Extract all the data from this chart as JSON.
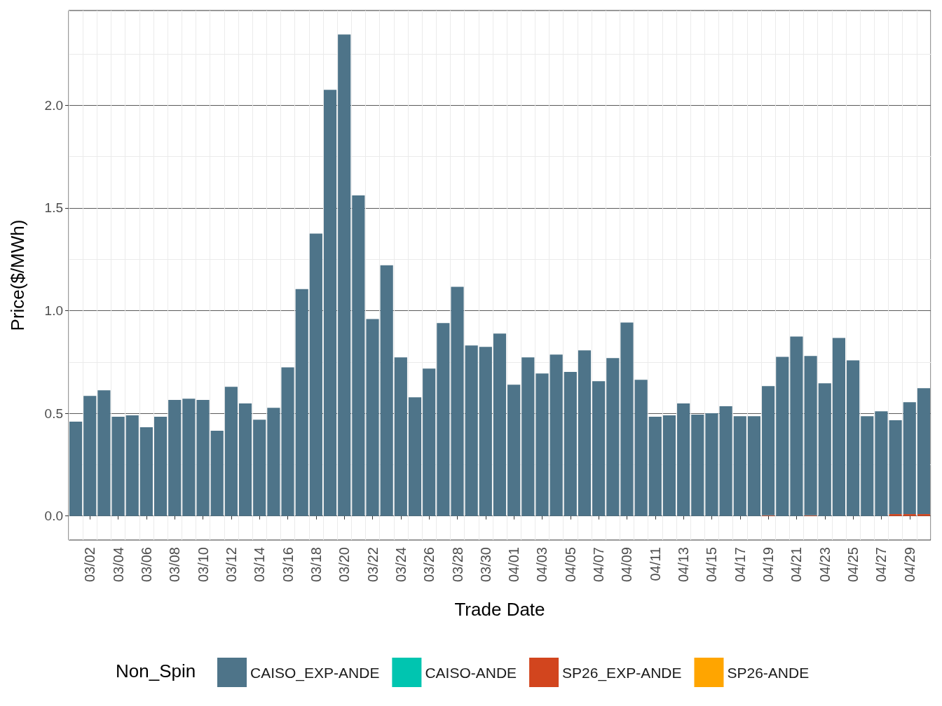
{
  "chart_data": {
    "type": "bar",
    "stacked": true,
    "xlabel": "Trade Date",
    "ylabel": "Price($/MWh)",
    "legend_title": "Non_Spin",
    "legend": "bottom",
    "grid": true,
    "categories": [
      null,
      "03/02",
      null,
      "03/04",
      null,
      "03/06",
      null,
      "03/08",
      null,
      "03/10",
      null,
      "03/12",
      null,
      "03/14",
      null,
      "03/16",
      null,
      "03/18",
      null,
      "03/20",
      null,
      "03/22",
      null,
      "03/24",
      null,
      "03/26",
      null,
      "03/28",
      null,
      "03/30",
      null,
      "04/01",
      null,
      "04/03",
      null,
      "04/05",
      null,
      "04/07",
      null,
      "04/09",
      null,
      "04/11",
      null,
      "04/13",
      null,
      "04/15",
      null,
      "04/17",
      null,
      "04/19",
      null,
      "04/21",
      null,
      "04/23",
      null,
      "04/25",
      null,
      "04/27",
      null,
      "04/29",
      null
    ],
    "ylim": [
      -0.117,
      2.461
    ],
    "yticks": [
      {
        "value": 0,
        "label": "0.0"
      },
      0.5,
      {
        "value": 1,
        "label": "1.0"
      },
      1.5,
      {
        "value": 2,
        "label": "2.0"
      }
    ],
    "series": [
      {
        "name": "SP26-ANDE",
        "color": "#ffa500",
        "values": [
          null,
          null,
          null,
          null,
          null,
          null,
          null,
          null,
          null,
          null,
          null,
          null,
          null,
          null,
          null,
          null,
          null,
          null,
          null,
          null,
          null,
          null,
          null,
          null,
          null,
          null,
          null,
          null,
          null,
          null,
          null,
          null,
          null,
          null,
          null,
          null,
          null,
          null,
          null,
          null,
          null,
          null,
          null,
          null,
          null,
          null,
          null,
          null,
          null,
          null,
          null,
          null,
          null,
          null,
          null,
          null,
          null,
          null,
          null,
          null,
          null
        ]
      },
      {
        "name": "SP26_EXP-ANDE",
        "color": "#d2451e",
        "values": [
          null,
          null,
          null,
          null,
          null,
          null,
          null,
          null,
          null,
          null,
          null,
          null,
          null,
          null,
          null,
          null,
          null,
          null,
          null,
          null,
          null,
          null,
          null,
          null,
          null,
          null,
          null,
          null,
          null,
          null,
          null,
          null,
          null,
          null,
          null,
          null,
          null,
          null,
          null,
          null,
          null,
          null,
          null,
          null,
          null,
          null,
          null,
          null,
          null,
          0.003,
          null,
          null,
          0.003,
          null,
          null,
          null,
          null,
          null,
          0.009,
          0.009,
          0.009
        ]
      },
      {
        "name": "CAISO-ANDE",
        "color": "#00c5b0",
        "values": [
          null,
          null,
          null,
          null,
          null,
          null,
          null,
          null,
          null,
          null,
          null,
          null,
          null,
          null,
          null,
          null,
          null,
          null,
          null,
          null,
          null,
          null,
          null,
          null,
          null,
          null,
          null,
          null,
          null,
          null,
          null,
          null,
          null,
          null,
          null,
          null,
          null,
          null,
          null,
          null,
          null,
          null,
          null,
          null,
          null,
          null,
          null,
          null,
          null,
          null,
          null,
          null,
          null,
          null,
          null,
          null,
          null,
          null,
          null,
          null,
          null
        ]
      },
      {
        "name": "CAISO_EXP-ANDE",
        "color": "#4e7489",
        "values": [
          0.459,
          0.585,
          0.612,
          0.483,
          0.49,
          0.432,
          0.483,
          0.565,
          0.571,
          0.565,
          0.415,
          0.629,
          0.548,
          0.469,
          0.527,
          0.724,
          1.105,
          1.375,
          2.075,
          2.344,
          1.561,
          0.959,
          1.221,
          0.772,
          0.578,
          0.718,
          0.939,
          1.116,
          0.83,
          0.823,
          0.888,
          0.639,
          0.772,
          0.694,
          0.786,
          0.701,
          0.806,
          0.656,
          0.769,
          0.942,
          0.663,
          0.483,
          0.49,
          0.548,
          0.493,
          0.5,
          0.534,
          0.486,
          0.486,
          0.629,
          0.775,
          0.874,
          0.776,
          0.646,
          0.867,
          0.758,
          0.486,
          0.51,
          0.457,
          0.545,
          0.613
        ]
      }
    ]
  }
}
